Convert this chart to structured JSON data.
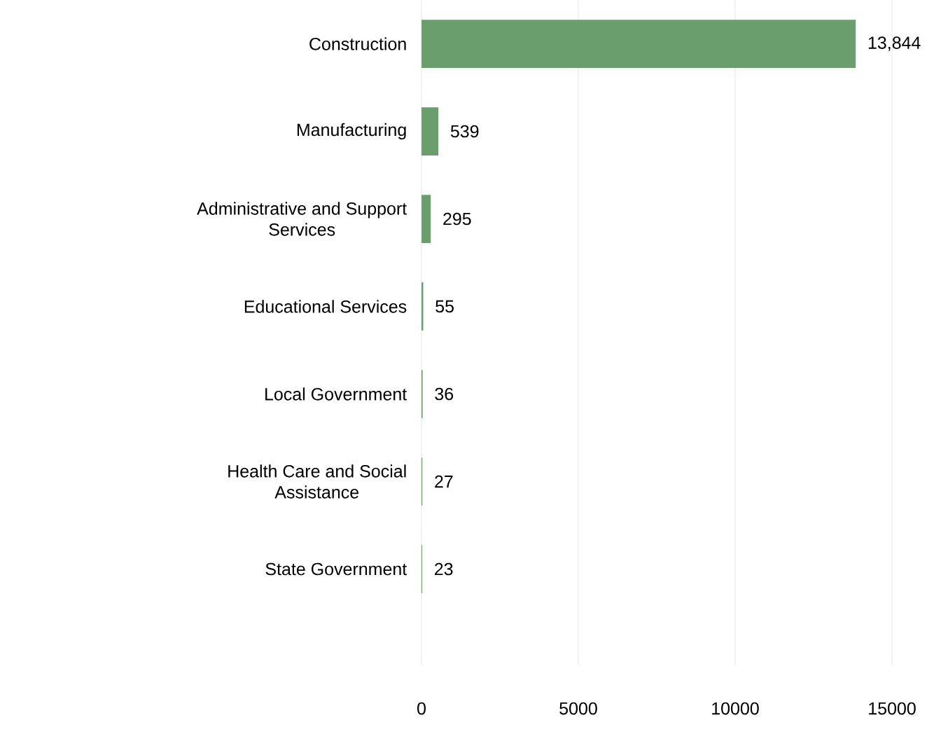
{
  "chart_data": {
    "type": "bar",
    "orientation": "horizontal",
    "categories": [
      "Construction",
      "Manufacturing",
      "Administrative and Support Services",
      "Educational Services",
      "Local Government",
      "Health Care and Social Assistance",
      "State Government"
    ],
    "values": [
      13844,
      539,
      295,
      55,
      36,
      27,
      23
    ],
    "value_labels": [
      "13,844",
      "539",
      "295",
      "55",
      "36",
      "27",
      "23"
    ],
    "color": "#6b9e6d",
    "xlim": [
      0,
      15000
    ],
    "xticks": [
      0,
      5000,
      10000,
      15000
    ],
    "grid": "x"
  }
}
